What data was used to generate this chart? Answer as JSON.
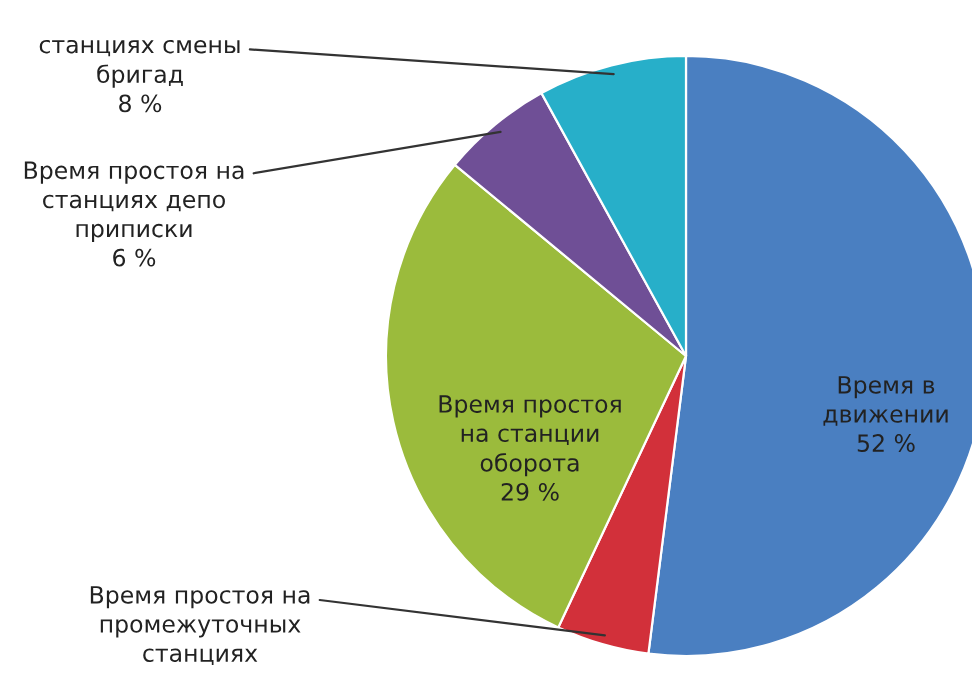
{
  "chart_data": {
    "type": "pie",
    "categories": [
      "Время в\nдвижении",
      "Время простоя на\nпромежуточных\nстанциях",
      "Время простоя\nна станции\nоборота",
      "Время простоя на\nстанциях депо\nприписки",
      "станциях смены\nбригад"
    ],
    "values": [
      52,
      5,
      29,
      6,
      8
    ],
    "value_labels": [
      "52 %",
      null,
      "29 %",
      "6 %",
      "8 %"
    ],
    "colors": [
      "#4a7fc1",
      "#d2303a",
      "#9bbb3c",
      "#6f4f96",
      "#27afc9"
    ],
    "legend": false
  }
}
